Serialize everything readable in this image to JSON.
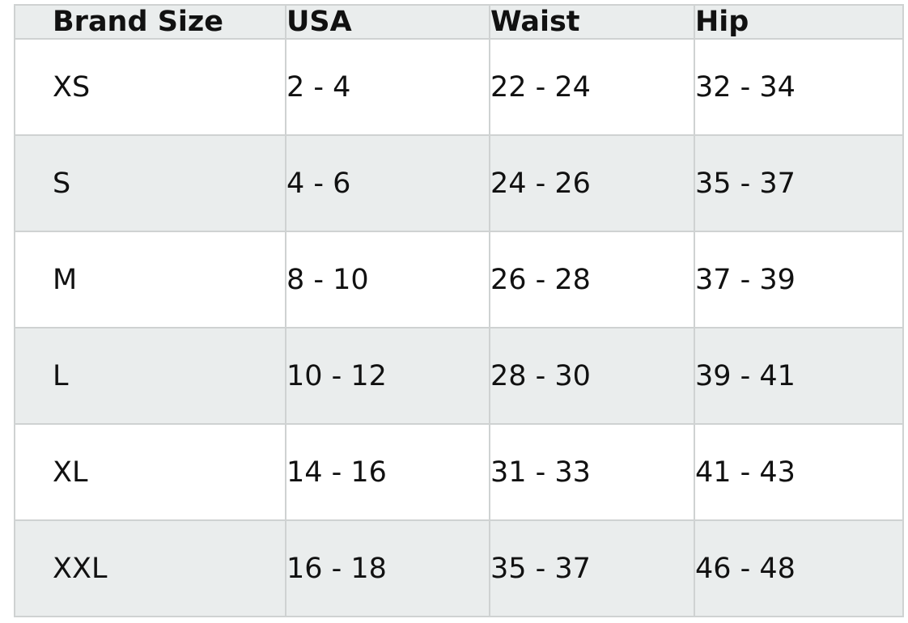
{
  "table": {
    "header": [
      "Brand Size",
      "USA",
      "Waist",
      "Hip"
    ],
    "rows": [
      [
        "XS",
        "2 - 4",
        "22 - 24",
        "32 - 34"
      ],
      [
        "S",
        "4 - 6",
        "24 - 26",
        "35 - 37"
      ],
      [
        "M",
        "8 - 10",
        "26 - 28",
        "37 - 39"
      ],
      [
        "L",
        "10 - 12",
        "28 - 30",
        "39 - 41"
      ],
      [
        "XL",
        "14 - 16",
        "31 - 33",
        "41 - 43"
      ],
      [
        "XXL",
        "16 - 18",
        "35 - 37",
        "46 - 48"
      ]
    ]
  }
}
